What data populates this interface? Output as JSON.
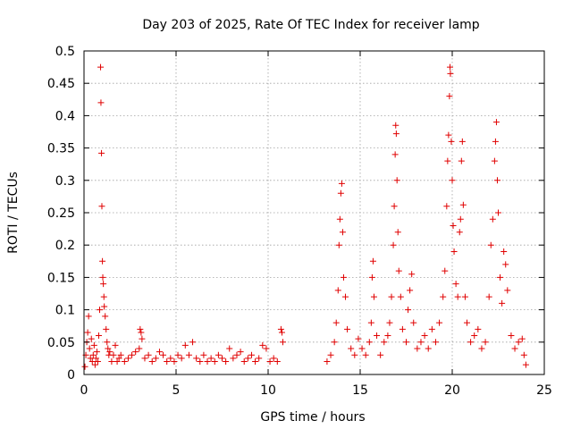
{
  "chart_data": {
    "type": "scatter",
    "title": "Day 203 of 2025, Rate Of TEC Index for receiver lamp",
    "xlabel": "GPS time / hours",
    "ylabel": "ROTI / TECUs",
    "xlim": [
      0,
      25
    ],
    "ylim": [
      0,
      0.5
    ],
    "xticks": [
      0,
      5,
      10,
      15,
      20,
      25
    ],
    "yticks": [
      0,
      0.05,
      0.1,
      0.15,
      0.2,
      0.25,
      0.3,
      0.35,
      0.4,
      0.45,
      0.5
    ],
    "grid": true,
    "marker": "plus",
    "color": "#e00000",
    "series": [
      {
        "points": [
          [
            0.05,
            0.012
          ],
          [
            0.1,
            0.03
          ],
          [
            0.15,
            0.05
          ],
          [
            0.2,
            0.065
          ],
          [
            0.25,
            0.09
          ],
          [
            0.3,
            0.04
          ],
          [
            0.35,
            0.025
          ],
          [
            0.4,
            0.055
          ],
          [
            0.45,
            0.02
          ],
          [
            0.5,
            0.03
          ],
          [
            0.55,
            0.045
          ],
          [
            0.6,
            0.015
          ],
          [
            0.65,
            0.025
          ],
          [
            0.7,
            0.035
          ],
          [
            0.75,
            0.02
          ],
          [
            0.8,
            0.06
          ],
          [
            0.85,
            0.1
          ],
          [
            0.9,
            0.475
          ],
          [
            0.92,
            0.42
          ],
          [
            0.95,
            0.342
          ],
          [
            0.97,
            0.26
          ],
          [
            1.0,
            0.175
          ],
          [
            1.02,
            0.15
          ],
          [
            1.05,
            0.14
          ],
          [
            1.08,
            0.12
          ],
          [
            1.1,
            0.105
          ],
          [
            1.15,
            0.09
          ],
          [
            1.2,
            0.07
          ],
          [
            1.25,
            0.05
          ],
          [
            1.3,
            0.04
          ],
          [
            1.35,
            0.03
          ],
          [
            1.4,
            0.035
          ],
          [
            1.5,
            0.02
          ],
          [
            1.6,
            0.03
          ],
          [
            1.7,
            0.045
          ],
          [
            1.8,
            0.02
          ],
          [
            1.9,
            0.025
          ],
          [
            2.0,
            0.03
          ],
          [
            2.2,
            0.02
          ],
          [
            2.4,
            0.025
          ],
          [
            2.6,
            0.03
          ],
          [
            2.8,
            0.035
          ],
          [
            3.0,
            0.04
          ],
          [
            3.05,
            0.07
          ],
          [
            3.1,
            0.065
          ],
          [
            3.15,
            0.055
          ],
          [
            3.3,
            0.025
          ],
          [
            3.5,
            0.03
          ],
          [
            3.7,
            0.02
          ],
          [
            3.9,
            0.025
          ],
          [
            4.1,
            0.035
          ],
          [
            4.3,
            0.03
          ],
          [
            4.5,
            0.02
          ],
          [
            4.7,
            0.025
          ],
          [
            4.9,
            0.02
          ],
          [
            5.1,
            0.03
          ],
          [
            5.3,
            0.025
          ],
          [
            5.5,
            0.045
          ],
          [
            5.7,
            0.03
          ],
          [
            5.9,
            0.05
          ],
          [
            6.1,
            0.025
          ],
          [
            6.3,
            0.02
          ],
          [
            6.5,
            0.03
          ],
          [
            6.7,
            0.02
          ],
          [
            6.9,
            0.025
          ],
          [
            7.1,
            0.02
          ],
          [
            7.3,
            0.03
          ],
          [
            7.5,
            0.025
          ],
          [
            7.7,
            0.02
          ],
          [
            7.9,
            0.04
          ],
          [
            8.1,
            0.025
          ],
          [
            8.3,
            0.03
          ],
          [
            8.5,
            0.035
          ],
          [
            8.7,
            0.02
          ],
          [
            8.9,
            0.025
          ],
          [
            9.1,
            0.03
          ],
          [
            9.3,
            0.02
          ],
          [
            9.5,
            0.025
          ],
          [
            9.7,
            0.045
          ],
          [
            9.9,
            0.04
          ],
          [
            10.1,
            0.02
          ],
          [
            10.3,
            0.025
          ],
          [
            10.5,
            0.02
          ],
          [
            10.7,
            0.07
          ],
          [
            10.75,
            0.065
          ],
          [
            10.8,
            0.05
          ],
          [
            13.2,
            0.02
          ],
          [
            13.4,
            0.03
          ],
          [
            13.6,
            0.05
          ],
          [
            13.7,
            0.08
          ],
          [
            13.8,
            0.13
          ],
          [
            13.85,
            0.2
          ],
          [
            13.9,
            0.24
          ],
          [
            13.95,
            0.28
          ],
          [
            14.0,
            0.295
          ],
          [
            14.05,
            0.22
          ],
          [
            14.1,
            0.15
          ],
          [
            14.2,
            0.12
          ],
          [
            14.3,
            0.07
          ],
          [
            14.5,
            0.04
          ],
          [
            14.7,
            0.03
          ],
          [
            14.9,
            0.055
          ],
          [
            15.1,
            0.04
          ],
          [
            15.3,
            0.03
          ],
          [
            15.5,
            0.05
          ],
          [
            15.6,
            0.08
          ],
          [
            15.65,
            0.15
          ],
          [
            15.7,
            0.175
          ],
          [
            15.75,
            0.12
          ],
          [
            15.9,
            0.06
          ],
          [
            16.1,
            0.03
          ],
          [
            16.3,
            0.05
          ],
          [
            16.5,
            0.06
          ],
          [
            16.6,
            0.08
          ],
          [
            16.7,
            0.12
          ],
          [
            16.8,
            0.2
          ],
          [
            16.85,
            0.26
          ],
          [
            16.9,
            0.34
          ],
          [
            16.93,
            0.385
          ],
          [
            16.96,
            0.372
          ],
          [
            17.0,
            0.3
          ],
          [
            17.05,
            0.22
          ],
          [
            17.1,
            0.16
          ],
          [
            17.2,
            0.12
          ],
          [
            17.3,
            0.07
          ],
          [
            17.5,
            0.05
          ],
          [
            17.6,
            0.1
          ],
          [
            17.7,
            0.13
          ],
          [
            17.8,
            0.155
          ],
          [
            17.9,
            0.08
          ],
          [
            18.1,
            0.04
          ],
          [
            18.3,
            0.05
          ],
          [
            18.5,
            0.06
          ],
          [
            18.7,
            0.04
          ],
          [
            18.9,
            0.07
          ],
          [
            19.1,
            0.05
          ],
          [
            19.3,
            0.08
          ],
          [
            19.5,
            0.12
          ],
          [
            19.6,
            0.16
          ],
          [
            19.7,
            0.26
          ],
          [
            19.75,
            0.33
          ],
          [
            19.8,
            0.37
          ],
          [
            19.85,
            0.43
          ],
          [
            19.88,
            0.475
          ],
          [
            19.9,
            0.465
          ],
          [
            19.95,
            0.36
          ],
          [
            20.0,
            0.3
          ],
          [
            20.05,
            0.23
          ],
          [
            20.1,
            0.19
          ],
          [
            20.2,
            0.14
          ],
          [
            20.3,
            0.12
          ],
          [
            20.4,
            0.22
          ],
          [
            20.45,
            0.24
          ],
          [
            20.5,
            0.33
          ],
          [
            20.55,
            0.36
          ],
          [
            20.6,
            0.262
          ],
          [
            20.7,
            0.12
          ],
          [
            20.8,
            0.08
          ],
          [
            21.0,
            0.05
          ],
          [
            21.2,
            0.06
          ],
          [
            21.4,
            0.07
          ],
          [
            21.6,
            0.04
          ],
          [
            21.8,
            0.05
          ],
          [
            22.0,
            0.12
          ],
          [
            22.1,
            0.2
          ],
          [
            22.2,
            0.24
          ],
          [
            22.3,
            0.33
          ],
          [
            22.35,
            0.36
          ],
          [
            22.4,
            0.39
          ],
          [
            22.45,
            0.3
          ],
          [
            22.5,
            0.25
          ],
          [
            22.6,
            0.15
          ],
          [
            22.7,
            0.11
          ],
          [
            22.8,
            0.19
          ],
          [
            22.9,
            0.17
          ],
          [
            23.0,
            0.13
          ],
          [
            23.2,
            0.06
          ],
          [
            23.4,
            0.04
          ],
          [
            23.6,
            0.05
          ],
          [
            23.8,
            0.055
          ],
          [
            23.9,
            0.03
          ],
          [
            24.0,
            0.015
          ]
        ]
      }
    ]
  }
}
